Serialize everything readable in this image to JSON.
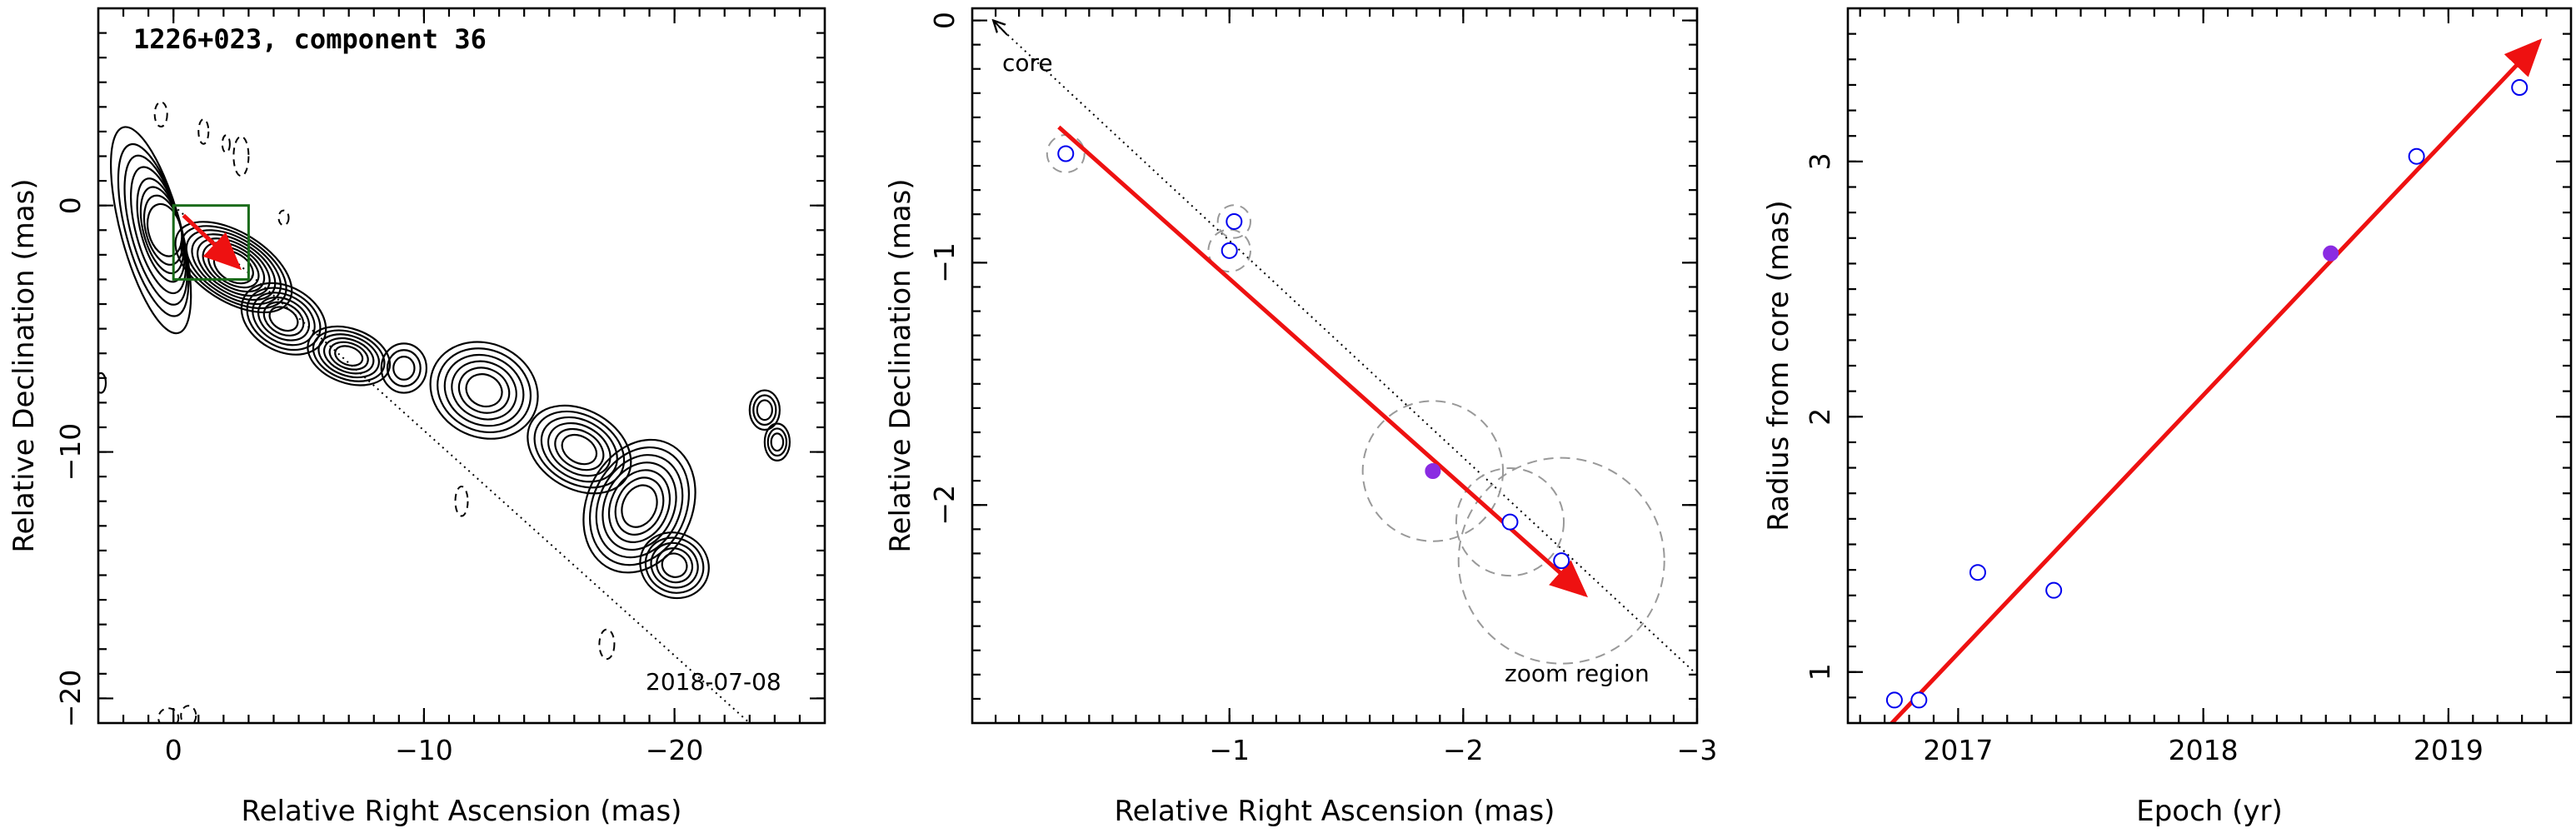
{
  "chart_data": [
    {
      "type": "contour",
      "title": "1226+023, component 36",
      "date_label": "2018-07-08",
      "xlabel": "Relative Right Ascension (mas)",
      "ylabel": "Relative Declination (mas)",
      "xlim": [
        3,
        -26
      ],
      "ylim": [
        -21,
        8
      ],
      "xticks": [
        0,
        -10,
        -20
      ],
      "xtick_labels": [
        "0",
        "−10",
        "−20"
      ],
      "yticks": [
        0,
        -10,
        -20
      ],
      "ytick_labels": [
        "0",
        "−10",
        "−20"
      ],
      "zoom_box": {
        "x": [
          0,
          -3
        ],
        "y": [
          0,
          -3
        ]
      },
      "core_direction_line": {
        "from": [
          0,
          0
        ],
        "to": [
          -23,
          -21
        ]
      },
      "motion_vector": {
        "from": [
          -0.4,
          -0.4
        ],
        "to": [
          -2.6,
          -2.5
        ]
      }
    },
    {
      "type": "scatter",
      "xlabel": "Relative Right Ascension (mas)",
      "ylabel": "Relative Declination (mas)",
      "xlim": [
        0.1,
        -3.0
      ],
      "ylim": [
        -2.9,
        0.05
      ],
      "xticks": [
        -1,
        -2,
        -3
      ],
      "xtick_labels": [
        "−1",
        "−2",
        "−3"
      ],
      "yticks": [
        0,
        -1,
        -2
      ],
      "ytick_labels": [
        "0",
        "−1",
        "−2"
      ],
      "annotations": [
        "core",
        "zoom region"
      ],
      "points": [
        {
          "x": -0.3,
          "y": -0.55,
          "r": 0.08,
          "highlight": false
        },
        {
          "x": -1.02,
          "y": -0.83,
          "r": 0.07,
          "highlight": false
        },
        {
          "x": -1.0,
          "y": -0.95,
          "r": 0.09,
          "highlight": false
        },
        {
          "x": -1.87,
          "y": -1.86,
          "r": 0.3,
          "highlight": true
        },
        {
          "x": -2.2,
          "y": -2.07,
          "r": 0.23,
          "highlight": false
        },
        {
          "x": -2.42,
          "y": -2.23,
          "r": 0.44,
          "highlight": false
        }
      ],
      "motion_vector": {
        "from": [
          -0.27,
          -0.44
        ],
        "to": [
          -2.52,
          -2.37
        ]
      },
      "core_direction_line": {
        "from": [
          0,
          0
        ],
        "to": [
          -3.0,
          -2.7
        ]
      }
    },
    {
      "type": "scatter",
      "xlabel": "Epoch (yr)",
      "ylabel": "Radius from core (mas)",
      "xlim": [
        2016.55,
        2019.5
      ],
      "ylim": [
        0.8,
        3.6
      ],
      "xticks": [
        2017,
        2018,
        2019
      ],
      "xtick_labels": [
        "2017",
        "2018",
        "2019"
      ],
      "yticks": [
        1,
        2,
        3
      ],
      "ytick_labels": [
        "1",
        "2",
        "3"
      ],
      "points": [
        {
          "x": 2016.74,
          "y": 0.89,
          "highlight": false
        },
        {
          "x": 2016.84,
          "y": 0.89,
          "highlight": false
        },
        {
          "x": 2017.08,
          "y": 1.39,
          "highlight": false
        },
        {
          "x": 2017.39,
          "y": 1.32,
          "highlight": false
        },
        {
          "x": 2018.52,
          "y": 2.64,
          "highlight": true
        },
        {
          "x": 2018.87,
          "y": 3.02,
          "highlight": false
        },
        {
          "x": 2019.29,
          "y": 3.29,
          "highlight": false
        }
      ],
      "fit_line": {
        "from": [
          2016.7,
          0.77
        ],
        "to": [
          2019.37,
          3.47
        ]
      }
    }
  ],
  "colors": {
    "axes": "#000000",
    "motion_vector": "#ee1111",
    "zoom_box": "#1a6b1a",
    "epoch_marker": "#0000ee",
    "current_epoch": "#8a2be2",
    "uncertainty_circle": "#999999"
  }
}
